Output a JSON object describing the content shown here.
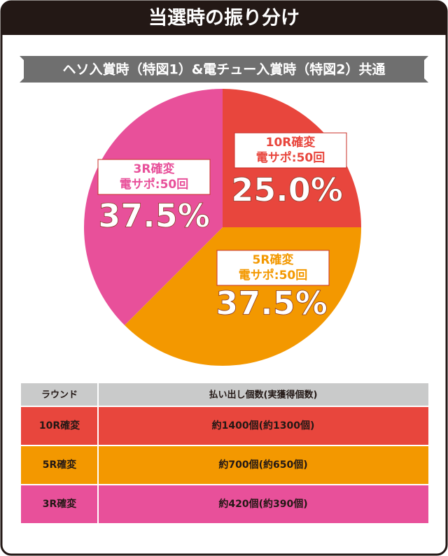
{
  "header": {
    "title": "当選時の振り分け"
  },
  "chart_data": {
    "type": "pie",
    "subtitle": "ヘソ入賞時（特図1）&電チュー入賞時（特図2）共通",
    "categories": [
      "10R確変",
      "5R確変",
      "3R確変"
    ],
    "sublabels": [
      "電サポ:50回",
      "電サポ:50回",
      "電サポ:50回"
    ],
    "values": [
      25.0,
      37.5,
      37.5
    ],
    "value_labels": [
      "25.0%",
      "37.5%",
      "37.5%"
    ],
    "colors": [
      "#e8463d",
      "#f39800",
      "#e8509a"
    ]
  },
  "table": {
    "header": [
      "ラウンド",
      "払い出し個数(実獲得個数)"
    ],
    "rows": [
      [
        "10R確変",
        "約1400個(約1300個)"
      ],
      [
        "5R確変",
        "約700個(約650個)"
      ],
      [
        "3R確変",
        "約420個(約390個)"
      ]
    ]
  }
}
